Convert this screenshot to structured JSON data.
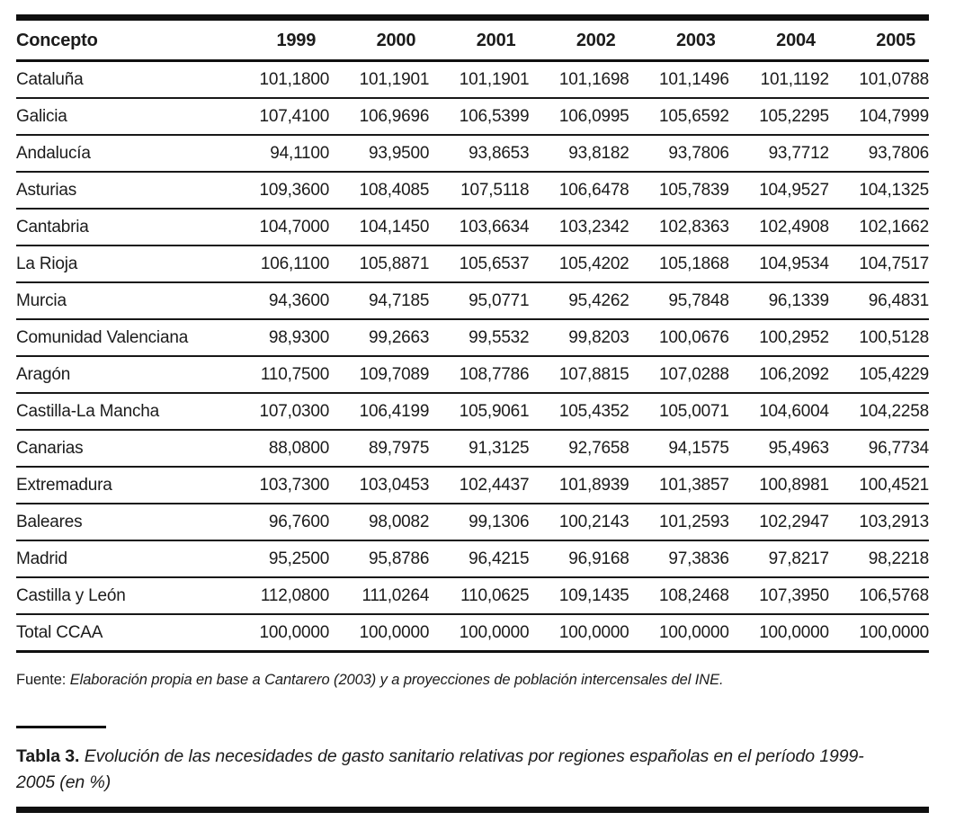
{
  "table": {
    "columns": [
      "Concepto",
      "1999",
      "2000",
      "2001",
      "2002",
      "2003",
      "2004",
      "2005"
    ],
    "rows": [
      {
        "label": "Cataluña",
        "values": [
          "101,1800",
          "101,1901",
          "101,1901",
          "101,1698",
          "101,1496",
          "101,1192",
          "101,0788"
        ]
      },
      {
        "label": "Galicia",
        "values": [
          "107,4100",
          "106,9696",
          "106,5399",
          "106,0995",
          "105,6592",
          "105,2295",
          "104,7999"
        ]
      },
      {
        "label": "Andalucía",
        "values": [
          "94,1100",
          "93,9500",
          "93,8653",
          "93,8182",
          "93,7806",
          "93,7712",
          "93,7806"
        ]
      },
      {
        "label": "Asturias",
        "values": [
          "109,3600",
          "108,4085",
          "107,5118",
          "106,6478",
          "105,7839",
          "104,9527",
          "104,1325"
        ]
      },
      {
        "label": "Cantabria",
        "values": [
          "104,7000",
          "104,1450",
          "103,6634",
          "103,2342",
          "102,8363",
          "102,4908",
          "102,1662"
        ]
      },
      {
        "label": "La Rioja",
        "values": [
          "106,1100",
          "105,8871",
          "105,6537",
          "105,4202",
          "105,1868",
          "104,9534",
          "104,7517"
        ]
      },
      {
        "label": "Murcia",
        "values": [
          "94,3600",
          "94,7185",
          "95,0771",
          "95,4262",
          "95,7848",
          "96,1339",
          "96,4831"
        ]
      },
      {
        "label": "Comunidad Valenciana",
        "values": [
          "98,9300",
          "99,2663",
          "99,5532",
          "99,8203",
          "100,0676",
          "100,2952",
          "100,5128"
        ]
      },
      {
        "label": "Aragón",
        "values": [
          "110,7500",
          "109,7089",
          "108,7786",
          "107,8815",
          "107,0288",
          "106,2092",
          "105,4229"
        ]
      },
      {
        "label": "Castilla-La Mancha",
        "values": [
          "107,0300",
          "106,4199",
          "105,9061",
          "105,4352",
          "105,0071",
          "104,6004",
          "104,2258"
        ]
      },
      {
        "label": "Canarias",
        "values": [
          "88,0800",
          "89,7975",
          "91,3125",
          "92,7658",
          "94,1575",
          "95,4963",
          "96,7734"
        ]
      },
      {
        "label": "Extremadura",
        "values": [
          "103,7300",
          "103,0453",
          "102,4437",
          "101,8939",
          "101,3857",
          "100,8981",
          "100,4521"
        ]
      },
      {
        "label": "Baleares",
        "values": [
          "96,7600",
          "98,0082",
          "99,1306",
          "100,2143",
          "101,2593",
          "102,2947",
          "103,2913"
        ]
      },
      {
        "label": "Madrid",
        "values": [
          "95,2500",
          "95,8786",
          "96,4215",
          "96,9168",
          "97,3836",
          "97,8217",
          "98,2218"
        ]
      },
      {
        "label": "Castilla y León",
        "values": [
          "112,0800",
          "111,0264",
          "110,0625",
          "109,1435",
          "108,2468",
          "107,3950",
          "106,5768"
        ]
      },
      {
        "label": "Total CCAA",
        "values": [
          "100,0000",
          "100,0000",
          "100,0000",
          "100,0000",
          "100,0000",
          "100,0000",
          "100,0000"
        ]
      }
    ]
  },
  "source": {
    "prefix": "Fuente:",
    "text": "Elaboración propia en base a Cantarero (2003) y a proyecciones de población intercensales del INE."
  },
  "caption": {
    "label": "Tabla 3.",
    "text": "Evolución de las necesidades de gasto sanitario relativas por regiones españolas en el período 1999-2005 (en %)"
  },
  "colors": {
    "text": "#1b1b1b",
    "rule": "#101010",
    "background": "#ffffff"
  }
}
